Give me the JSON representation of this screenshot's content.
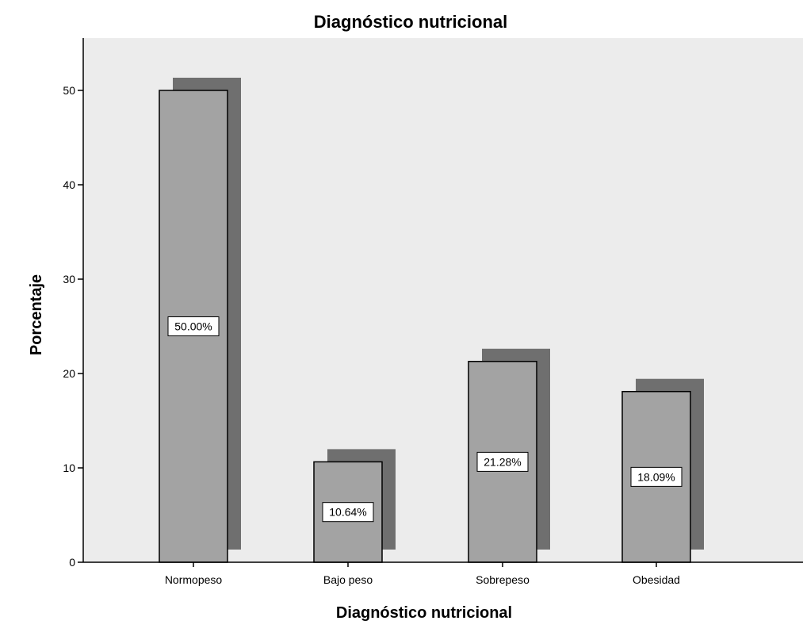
{
  "chart_data": {
    "type": "bar",
    "title": "Diagnóstico nutricional",
    "xlabel": "Diagnóstico nutricional",
    "ylabel": "Porcentaje",
    "categories": [
      "Normopeso",
      "Bajo peso",
      "Sobrepeso",
      "Obesidad"
    ],
    "values": [
      50.0,
      10.64,
      21.28,
      18.09
    ],
    "data_labels": [
      "50.00%",
      "10.64%",
      "21.28%",
      "18.09%"
    ],
    "ylim": [
      0,
      55
    ],
    "yticks": [
      0,
      10,
      20,
      30,
      40,
      50
    ],
    "ytick_labels": [
      "0",
      "10",
      "20",
      "30",
      "40",
      "50"
    ],
    "grid": false,
    "legend": "none",
    "style": "3d-shadow",
    "colors": {
      "plot_background": "#ececec",
      "bar_fill": "#a3a3a3",
      "bar_shadow": "#6f6f6f",
      "bar_outline": "#000000",
      "label_box": "#ffffff"
    }
  }
}
